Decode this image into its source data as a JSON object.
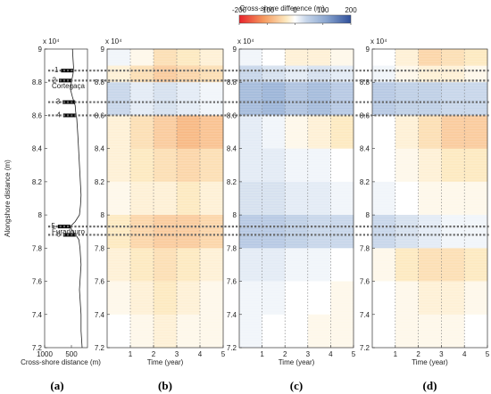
{
  "colorbar": {
    "title": "Cross-shore difference (m)",
    "ticks": [
      "-200",
      "-100",
      "0",
      "100",
      "200"
    ],
    "colors": [
      "#e8232b",
      "#f59a5f",
      "#fde9c0",
      "#ffffff",
      "#c7d6ea",
      "#8aa6d0",
      "#2f4f9a"
    ]
  },
  "chart_data": [
    {
      "id": "a",
      "type": "line",
      "panel_label": "(a)",
      "title": "",
      "xlabel": "Cross-shore distance (m)",
      "ylabel": "Alongshore distance (m)",
      "y_exponent": "x 10⁴",
      "xlim": [
        1000,
        200
      ],
      "ylim": [
        72000,
        90000
      ],
      "x_ticks": [
        "1000",
        "500"
      ],
      "y_ticks": [
        "7.2",
        "7.4",
        "7.6",
        "7.8",
        "8",
        "8.2",
        "8.4",
        "8.6",
        "8.8",
        "9"
      ],
      "markers": [
        {
          "label": "1",
          "y": 88700
        },
        {
          "label": "2",
          "y": 88100
        },
        {
          "label": "3",
          "y": 86800
        },
        {
          "label": "4",
          "y": 86000
        },
        {
          "label": "5",
          "y": 79300
        },
        {
          "label": "6",
          "y": 78800
        }
      ],
      "place_names": [
        {
          "name": "Cortegaça",
          "y": 87800
        },
        {
          "name": "Furadouro",
          "y": 79000
        }
      ],
      "coastline": [
        [
          480,
          90000
        ],
        [
          470,
          89400
        ],
        [
          460,
          88900
        ],
        [
          470,
          88500
        ],
        [
          500,
          88000
        ],
        [
          520,
          87600
        ],
        [
          480,
          87100
        ],
        [
          430,
          86600
        ],
        [
          420,
          86200
        ],
        [
          400,
          85800
        ],
        [
          390,
          85300
        ],
        [
          380,
          84800
        ],
        [
          370,
          84200
        ],
        [
          360,
          83600
        ],
        [
          350,
          83000
        ],
        [
          340,
          82400
        ],
        [
          330,
          81800
        ],
        [
          320,
          81200
        ],
        [
          330,
          80600
        ],
        [
          350,
          80000
        ],
        [
          430,
          79600
        ],
        [
          520,
          79300
        ],
        [
          480,
          79000
        ],
        [
          420,
          78800
        ],
        [
          360,
          78500
        ],
        [
          340,
          78000
        ],
        [
          330,
          77500
        ],
        [
          320,
          77000
        ],
        [
          330,
          76500
        ],
        [
          340,
          76000
        ],
        [
          350,
          75500
        ],
        [
          340,
          75000
        ],
        [
          330,
          74500
        ],
        [
          320,
          74000
        ],
        [
          320,
          73500
        ],
        [
          320,
          73000
        ],
        [
          310,
          72500
        ],
        [
          300,
          72000
        ]
      ]
    },
    {
      "id": "b",
      "type": "heatmap",
      "panel_label": "(b)",
      "xlabel": "Time (year)",
      "ylabel": "",
      "y_exponent": "x 10⁴",
      "xlim": [
        0,
        5
      ],
      "ylim": [
        72000,
        90000
      ],
      "x_ticks": [
        "1",
        "2",
        "3",
        "4",
        "5"
      ],
      "y_ticks": [
        "7.2",
        "7.4",
        "7.6",
        "7.8",
        "8",
        "8.2",
        "8.4",
        "8.6",
        "8.8",
        "9"
      ],
      "bands": [
        {
          "y0": 89000,
          "y1": 90000,
          "values": [
            10,
            -10,
            -40,
            -30,
            -20
          ]
        },
        {
          "y0": 88000,
          "y1": 89000,
          "values": [
            -20,
            -40,
            -60,
            -50,
            -40
          ]
        },
        {
          "y0": 86000,
          "y1": 88000,
          "values": [
            40,
            20,
            30,
            20,
            10
          ]
        },
        {
          "y0": 84000,
          "y1": 86000,
          "values": [
            -20,
            -40,
            -60,
            -80,
            -70
          ]
        },
        {
          "y0": 82000,
          "y1": 84000,
          "values": [
            -20,
            -30,
            -40,
            -50,
            -40
          ]
        },
        {
          "y0": 80000,
          "y1": 82000,
          "values": [
            -10,
            -20,
            -20,
            -30,
            -20
          ]
        },
        {
          "y0": 78000,
          "y1": 80000,
          "values": [
            -30,
            -50,
            -60,
            -60,
            -50
          ]
        },
        {
          "y0": 76000,
          "y1": 78000,
          "values": [
            -20,
            -30,
            -40,
            -30,
            -20
          ]
        },
        {
          "y0": 74000,
          "y1": 76000,
          "values": [
            -10,
            -20,
            -30,
            -20,
            -10
          ]
        },
        {
          "y0": 72000,
          "y1": 74000,
          "values": [
            0,
            -10,
            -20,
            -10,
            -10
          ]
        }
      ]
    },
    {
      "id": "c",
      "type": "heatmap",
      "panel_label": "(c)",
      "xlabel": "Time (year)",
      "ylabel": "",
      "y_exponent": "x 10⁴",
      "xlim": [
        0,
        5
      ],
      "ylim": [
        72000,
        90000
      ],
      "x_ticks": [
        "1",
        "2",
        "3",
        "4",
        "5"
      ],
      "y_ticks": [
        "7.2",
        "7.4",
        "7.6",
        "7.8",
        "8",
        "8.2",
        "8.4",
        "8.6",
        "8.8",
        "9"
      ],
      "bands": [
        {
          "y0": 89000,
          "y1": 90000,
          "values": [
            10,
            0,
            -20,
            -20,
            -10
          ]
        },
        {
          "y0": 88000,
          "y1": 89000,
          "values": [
            40,
            30,
            20,
            30,
            20
          ]
        },
        {
          "y0": 86000,
          "y1": 88000,
          "values": [
            80,
            90,
            70,
            80,
            60
          ]
        },
        {
          "y0": 84000,
          "y1": 86000,
          "values": [
            20,
            10,
            -10,
            -20,
            -30
          ]
        },
        {
          "y0": 82000,
          "y1": 84000,
          "values": [
            20,
            20,
            10,
            10,
            0
          ]
        },
        {
          "y0": 80000,
          "y1": 82000,
          "values": [
            30,
            30,
            20,
            20,
            10
          ]
        },
        {
          "y0": 78000,
          "y1": 80000,
          "values": [
            60,
            60,
            50,
            40,
            40
          ]
        },
        {
          "y0": 76000,
          "y1": 78000,
          "values": [
            20,
            20,
            10,
            10,
            0
          ]
        },
        {
          "y0": 74000,
          "y1": 76000,
          "values": [
            10,
            10,
            0,
            0,
            -10
          ]
        },
        {
          "y0": 72000,
          "y1": 74000,
          "values": [
            10,
            0,
            0,
            -10,
            -10
          ]
        }
      ]
    },
    {
      "id": "d",
      "type": "heatmap",
      "panel_label": "(d)",
      "xlabel": "Time (year)",
      "ylabel": "",
      "y_exponent": "x 10⁴",
      "xlim": [
        0,
        5
      ],
      "ylim": [
        72000,
        90000
      ],
      "x_ticks": [
        "1",
        "2",
        "3",
        "4",
        "5"
      ],
      "y_ticks": [
        "7.2",
        "7.4",
        "7.6",
        "7.8",
        "8",
        "8.2",
        "8.4",
        "8.6",
        "8.8",
        "9"
      ],
      "bands": [
        {
          "y0": 89000,
          "y1": 90000,
          "values": [
            0,
            -20,
            -50,
            -40,
            -30
          ]
        },
        {
          "y0": 88000,
          "y1": 89000,
          "values": [
            10,
            -10,
            -20,
            -20,
            -10
          ]
        },
        {
          "y0": 86000,
          "y1": 88000,
          "values": [
            60,
            50,
            50,
            40,
            40
          ]
        },
        {
          "y0": 84000,
          "y1": 86000,
          "values": [
            0,
            -20,
            -40,
            -60,
            -60
          ]
        },
        {
          "y0": 82000,
          "y1": 84000,
          "values": [
            0,
            -10,
            -20,
            -30,
            -30
          ]
        },
        {
          "y0": 80000,
          "y1": 82000,
          "values": [
            10,
            0,
            -10,
            -10,
            -10
          ]
        },
        {
          "y0": 78000,
          "y1": 80000,
          "values": [
            40,
            30,
            20,
            10,
            10
          ]
        },
        {
          "y0": 76000,
          "y1": 78000,
          "values": [
            -10,
            -30,
            -40,
            -40,
            -30
          ]
        },
        {
          "y0": 74000,
          "y1": 76000,
          "values": [
            0,
            -10,
            -20,
            -20,
            -10
          ]
        },
        {
          "y0": 72000,
          "y1": 74000,
          "values": [
            0,
            -10,
            -10,
            -10,
            0
          ]
        }
      ]
    }
  ],
  "dotted_lines_y": [
    88700,
    88100,
    86800,
    86000,
    79300,
    78800
  ]
}
